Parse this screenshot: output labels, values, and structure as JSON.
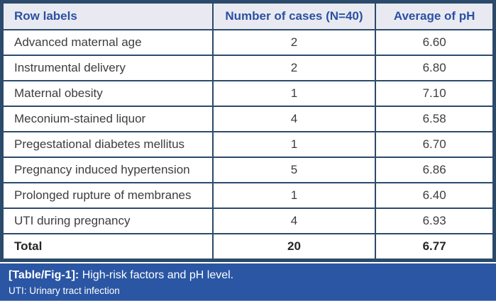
{
  "chart_data": {
    "type": "table",
    "title": "[Table/Fig-1]: High-risk factors and pH level.",
    "columns": [
      "Row labels",
      "Number of cases (N=40)",
      "Average of pH"
    ],
    "rows": [
      [
        "Advanced maternal age",
        2,
        6.6
      ],
      [
        "Instrumental delivery",
        2,
        6.8
      ],
      [
        "Maternal obesity",
        1,
        7.1
      ],
      [
        "Meconium-stained liquor",
        4,
        6.58
      ],
      [
        "Pregestational diabetes mellitus",
        1,
        6.7
      ],
      [
        "Pregnancy induced hypertension",
        5,
        6.86
      ],
      [
        "Prolonged rupture of membranes",
        1,
        6.4
      ],
      [
        "UTI during pregnancy",
        4,
        6.93
      ],
      [
        "Total",
        20,
        6.77
      ]
    ],
    "footnote": "UTI: Urinary tract infection"
  },
  "table": {
    "columns": [
      {
        "label": "Row labels"
      },
      {
        "label": "Number of cases (N=40)"
      },
      {
        "label": "Average of pH"
      }
    ],
    "rows": [
      {
        "label": "Advanced maternal age",
        "cases": "2",
        "ph": "6.60"
      },
      {
        "label": "Instrumental delivery",
        "cases": "2",
        "ph": "6.80"
      },
      {
        "label": "Maternal obesity",
        "cases": "1",
        "ph": "7.10"
      },
      {
        "label": "Meconium-stained liquor",
        "cases": "4",
        "ph": "6.58"
      },
      {
        "label": "Pregestational diabetes mellitus",
        "cases": "1",
        "ph": "6.70"
      },
      {
        "label": "Pregnancy induced hypertension",
        "cases": "5",
        "ph": "6.86"
      },
      {
        "label": "Prolonged rupture of membranes",
        "cases": "1",
        "ph": "6.40"
      },
      {
        "label": "UTI during pregnancy",
        "cases": "4",
        "ph": "6.93"
      }
    ],
    "total": {
      "label": "Total",
      "cases": "20",
      "ph": "6.77"
    }
  },
  "caption": {
    "tag": "[Table/Fig-1]:",
    "text": " High-risk factors and pH level.",
    "note": "UTI: Urinary tract infection"
  },
  "colors": {
    "grid_border": "#2c4a6b",
    "header_bg": "#e9eaf1",
    "header_text": "#2b50a3",
    "body_text": "#3d3d3d",
    "caption_bg": "#2a56a4",
    "caption_text": "#ffffff"
  }
}
